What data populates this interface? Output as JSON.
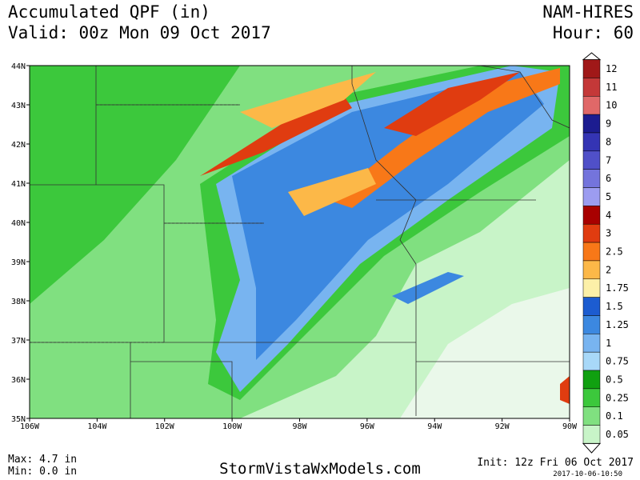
{
  "header": {
    "title": "Accumulated QPF (in)",
    "valid": "Valid: 00z Mon 09 Oct 2017",
    "model": "NAM-HIRES",
    "hour": "Hour: 60"
  },
  "axes": {
    "lat": [
      "44N",
      "43N",
      "42N",
      "41N",
      "40N",
      "39N",
      "38N",
      "37N",
      "36N",
      "35N"
    ],
    "lon": [
      "106W",
      "104W",
      "102W",
      "100W",
      "98W",
      "96W",
      "94W",
      "92W",
      "90W"
    ]
  },
  "colorbar": {
    "labels": [
      "12",
      "11",
      "10",
      "9",
      "8",
      "7",
      "6",
      "5",
      "4",
      "3",
      "2.5",
      "2",
      "1.75",
      "1.5",
      "1.25",
      "1",
      "0.75",
      "0.5",
      "0.25",
      "0.1",
      "0.05"
    ],
    "colors": [
      "#a01818",
      "#c43838",
      "#e06868",
      "#1c1c90",
      "#3434b4",
      "#5050c8",
      "#7474dc",
      "#9c9cf0",
      "#a80000",
      "#e03c10",
      "#f87818",
      "#fcb848",
      "#fcf0a8",
      "#1c5cd0",
      "#3c88e0",
      "#78b4f0",
      "#a8d8f8",
      "#10a010",
      "#3cc83c",
      "#80e080",
      "#c8f4c8"
    ]
  },
  "footer": {
    "max": "Max: 4.7 in",
    "min": "Min: 0.0 in",
    "site": "StormVistaWxModels.com",
    "init": "Init: 12z Fri 06 Oct 2017",
    "stamp": "2017-10-06-10:50"
  }
}
